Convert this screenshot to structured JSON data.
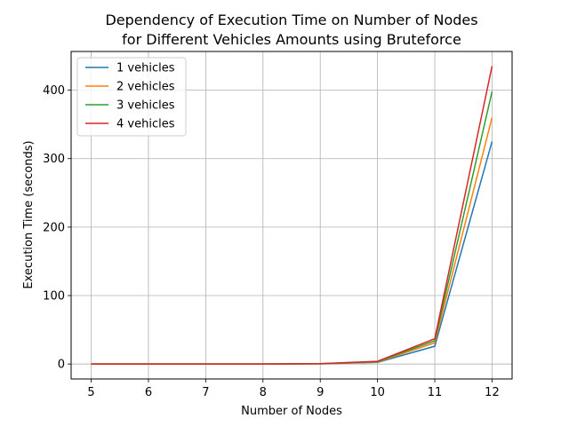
{
  "chart_data": {
    "type": "line",
    "title_line1": "Dependency of Execution Time on Number of Nodes",
    "title_line2": "for Different Vehicles Amounts using Bruteforce",
    "xlabel": "Number of Nodes",
    "ylabel": "Execution Time (seconds)",
    "x": [
      5,
      6,
      7,
      8,
      9,
      10,
      11,
      12
    ],
    "xticks": [
      "5",
      "6",
      "7",
      "8",
      "9",
      "10",
      "11",
      "12"
    ],
    "yticks": [
      "0",
      "100",
      "200",
      "300",
      "400"
    ],
    "ytick_values": [
      0,
      100,
      200,
      300,
      400
    ],
    "xlim": [
      4.65,
      12.35
    ],
    "ylim": [
      -21.8,
      456.5
    ],
    "grid": true,
    "legend_position": "top-left",
    "series": [
      {
        "name": "1 vehicles",
        "color": "#1f77b4",
        "values": [
          0,
          0,
          0,
          0,
          0.3,
          2.5,
          26,
          325
        ]
      },
      {
        "name": "2 vehicles",
        "color": "#ff7f0e",
        "values": [
          0,
          0,
          0,
          0,
          0.4,
          3.0,
          31,
          360
        ]
      },
      {
        "name": "3 vehicles",
        "color": "#2ca02c",
        "values": [
          0,
          0,
          0,
          0,
          0.5,
          3.5,
          34,
          398
        ]
      },
      {
        "name": "4 vehicles",
        "color": "#d62728",
        "values": [
          0,
          0,
          0,
          0,
          0.6,
          4.0,
          37,
          435
        ]
      }
    ]
  }
}
